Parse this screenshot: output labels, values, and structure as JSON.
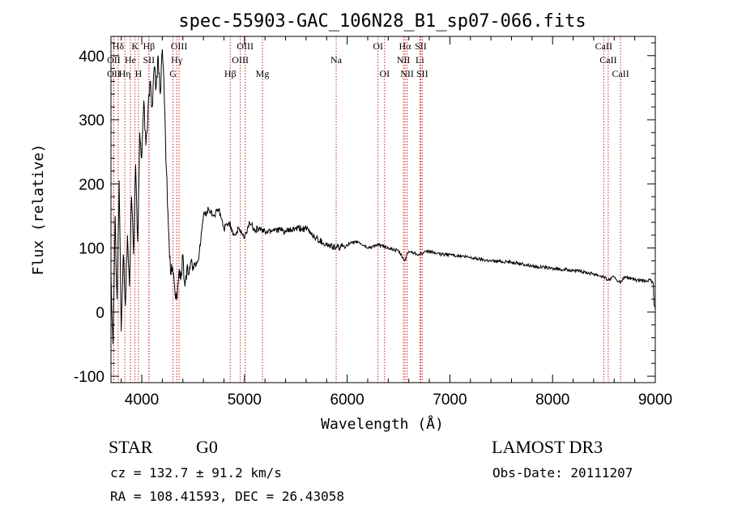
{
  "chart_data": {
    "type": "line",
    "title": "spec-55903-GAC_106N28_B1_sp07-066.fits",
    "xlabel": "Wavelength (Å)",
    "ylabel": "Flux (relative)",
    "xlim": [
      3700,
      9000
    ],
    "ylim": [
      -110,
      430
    ],
    "x_ticks": [
      4000,
      5000,
      6000,
      7000,
      8000,
      9000
    ],
    "y_ticks": [
      -100,
      0,
      100,
      200,
      300,
      400
    ],
    "series": [
      {
        "name": "flux",
        "x": [
          3700,
          3720,
          3740,
          3760,
          3780,
          3800,
          3820,
          3840,
          3860,
          3880,
          3900,
          3920,
          3940,
          3960,
          3980,
          4000,
          4020,
          4040,
          4060,
          4080,
          4100,
          4120,
          4140,
          4160,
          4180,
          4200,
          4220,
          4240,
          4260,
          4280,
          4300,
          4320,
          4340,
          4360,
          4380,
          4400,
          4420,
          4440,
          4460,
          4480,
          4500,
          4550,
          4600,
          4650,
          4700,
          4750,
          4800,
          4850,
          4900,
          4950,
          5000,
          5050,
          5100,
          5150,
          5200,
          5300,
          5400,
          5500,
          5600,
          5700,
          5800,
          5900,
          6000,
          6100,
          6200,
          6300,
          6400,
          6500,
          6560,
          6600,
          6700,
          6800,
          6900,
          7000,
          7200,
          7400,
          7600,
          7800,
          8000,
          8200,
          8400,
          8500,
          8540,
          8600,
          8660,
          8700,
          8800,
          8900,
          8950,
          8980,
          8990,
          9000
        ],
        "y": [
          60,
          -50,
          150,
          20,
          205,
          -30,
          90,
          10,
          120,
          40,
          180,
          90,
          230,
          110,
          280,
          240,
          330,
          260,
          310,
          360,
          320,
          380,
          350,
          400,
          340,
          410,
          330,
          220,
          130,
          60,
          70,
          40,
          20,
          60,
          50,
          90,
          40,
          70,
          60,
          80,
          70,
          80,
          150,
          160,
          150,
          160,
          130,
          140,
          120,
          130,
          115,
          140,
          130,
          130,
          125,
          130,
          125,
          130,
          130,
          115,
          105,
          100,
          105,
          110,
          100,
          105,
          100,
          95,
          80,
          95,
          90,
          95,
          90,
          90,
          85,
          80,
          78,
          72,
          68,
          65,
          60,
          55,
          50,
          55,
          45,
          55,
          50,
          48,
          50,
          45,
          10,
          5
        ]
      }
    ],
    "lines": [
      {
        "label": "Hδ",
        "x": 3770,
        "row": 0
      },
      {
        "label": "K",
        "x": 3934,
        "row": 0
      },
      {
        "label": "Hβ",
        "x": 4070,
        "row": 0
      },
      {
        "label": "OIII",
        "x": 4363,
        "row": 0
      },
      {
        "label": "OIII",
        "x": 5007,
        "row": 0
      },
      {
        "label": "OI",
        "x": 6300,
        "row": 0
      },
      {
        "label": "Hα",
        "x": 6563,
        "row": 0
      },
      {
        "label": "SII",
        "x": 6716,
        "row": 0
      },
      {
        "label": "CaII",
        "x": 8498,
        "row": 0
      },
      {
        "label": "OII",
        "x": 3727,
        "row": 1
      },
      {
        "label": "He",
        "x": 3889,
        "row": 1
      },
      {
        "label": "SII",
        "x": 4069,
        "row": 1
      },
      {
        "label": "Hγ",
        "x": 4340,
        "row": 1
      },
      {
        "label": "OIII",
        "x": 4959,
        "row": 1
      },
      {
        "label": "Na",
        "x": 5893,
        "row": 1
      },
      {
        "label": "NII",
        "x": 6548,
        "row": 1
      },
      {
        "label": "Li",
        "x": 6708,
        "row": 1
      },
      {
        "label": "CaII",
        "x": 8542,
        "row": 1
      },
      {
        "label": "OII",
        "x": 3727,
        "row": 2
      },
      {
        "label": "Hη",
        "x": 3835,
        "row": 2
      },
      {
        "label": "H",
        "x": 3968,
        "row": 2
      },
      {
        "label": "G",
        "x": 4304,
        "row": 2
      },
      {
        "label": "Hβ",
        "x": 4861,
        "row": 2
      },
      {
        "label": "Mg",
        "x": 5175,
        "row": 2
      },
      {
        "label": "OI",
        "x": 6364,
        "row": 2
      },
      {
        "label": "NII",
        "x": 6583,
        "row": 2
      },
      {
        "label": "SII",
        "x": 6731,
        "row": 2
      },
      {
        "label": "CaII",
        "x": 8662,
        "row": 2
      }
    ]
  },
  "info": {
    "object_class": "STAR",
    "subclass": "G0",
    "survey": "LAMOST DR3",
    "redshift": "cz = 132.7 ± 91.2 km/s",
    "obs_date": "Obs-Date: 20111207",
    "coords": "RA = 108.41593, DEC =  26.43058"
  },
  "colors": {
    "line_marker": "#cc2222",
    "spectrum": "#000000"
  }
}
